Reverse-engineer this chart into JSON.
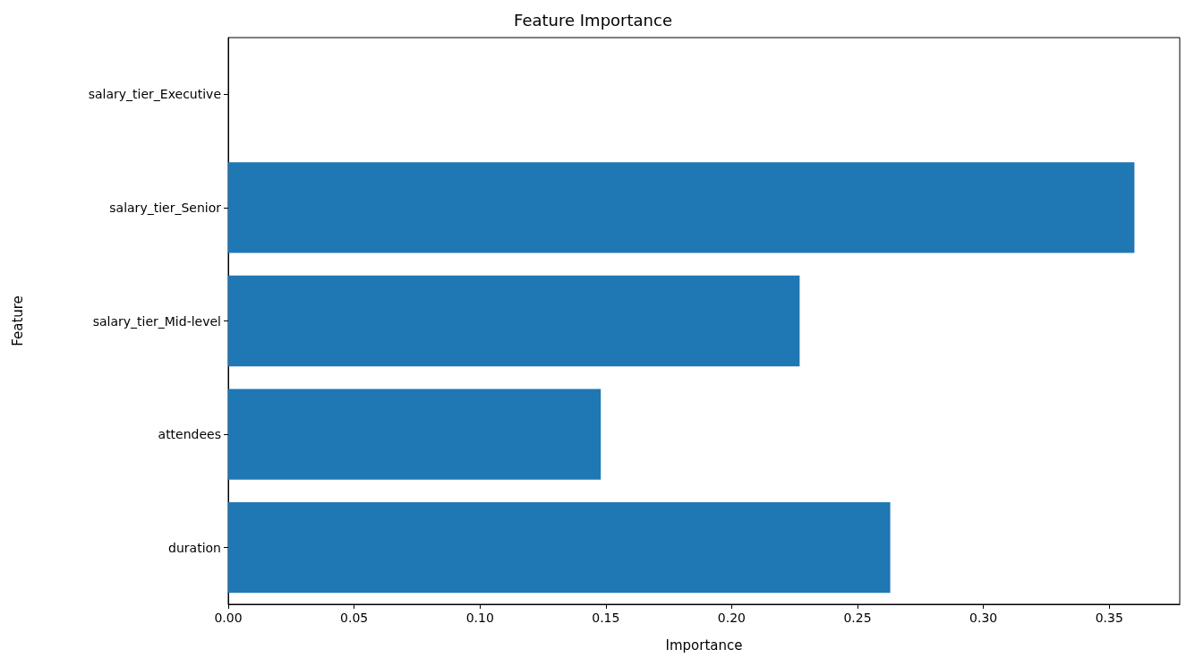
{
  "chart_data": {
    "type": "bar",
    "orientation": "horizontal",
    "title": "Feature Importance",
    "xlabel": "Importance",
    "ylabel": "Feature",
    "categories": [
      "salary_tier_Executive",
      "salary_tier_Senior",
      "salary_tier_Mid-level",
      "attendees",
      "duration"
    ],
    "values": [
      0,
      0.36,
      0.227,
      0.148,
      0.263
    ],
    "color": "#1f77b4",
    "xlim": [
      0,
      0.378
    ],
    "xticks": [
      {
        "value": 0,
        "label": "0.00"
      },
      {
        "value": 0.05,
        "label": "0.05"
      },
      {
        "value": 0.1,
        "label": "0.10"
      },
      {
        "value": 0.15,
        "label": "0.15"
      },
      {
        "value": 0.2,
        "label": "0.20"
      },
      {
        "value": 0.25,
        "label": "0.25"
      },
      {
        "value": 0.3,
        "label": "0.30"
      },
      {
        "value": 0.35,
        "label": "0.35"
      }
    ],
    "grid": false
  }
}
